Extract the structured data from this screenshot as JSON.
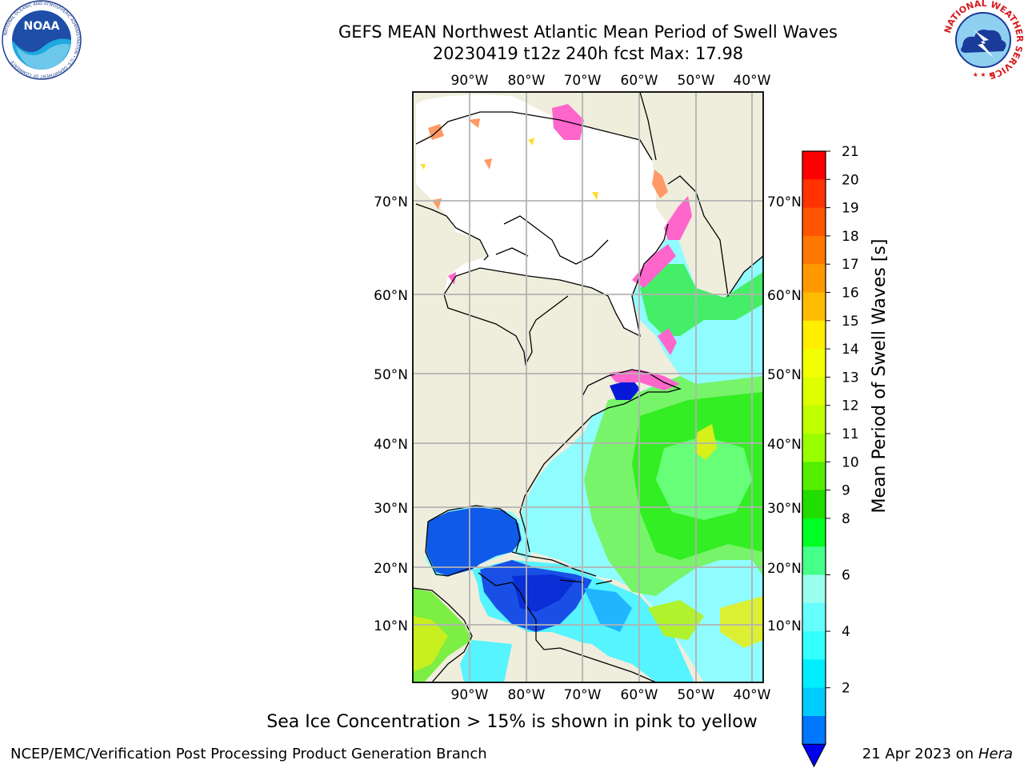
{
  "header": {
    "title_line1": "GEFS MEAN Northwest Atlantic Mean Period of Swell Waves",
    "title_line2": "20230419 t12z 240h fcst   Max: 17.98"
  },
  "logos": {
    "noaa_text": "NOAA",
    "noaa_ring": "NATIONAL OCEANIC AND ATMOSPHERIC ADMINISTRATION • U.S. DEPARTMENT OF COMMERCE",
    "nws_ring": "NATIONAL WEATHER SERVICE"
  },
  "map": {
    "lon_labels": [
      "90°W",
      "80°W",
      "70°W",
      "60°W",
      "50°W",
      "40°W"
    ],
    "lat_labels": [
      "70°N",
      "60°N",
      "50°N",
      "40°N",
      "30°N",
      "20°N",
      "10°N"
    ],
    "colors": {
      "land": "#efeddc",
      "ice_pink": "#ff66cc",
      "ice_orange": "#ff9966",
      "ice_yellow": "#ffdd33",
      "grid": "#b3b3b3"
    }
  },
  "colorbar": {
    "label": "Mean Period of Swell Waves [s]",
    "ticks": [
      "21",
      "20",
      "19",
      "18",
      "17",
      "16",
      "15",
      "14",
      "13",
      "12",
      "11",
      "10",
      "9",
      "8",
      "6",
      "4",
      "2"
    ],
    "colors": [
      "#ff0000",
      "#ff3300",
      "#ff5500",
      "#ff7700",
      "#ff9900",
      "#ffbb00",
      "#ffee00",
      "#f2ff00",
      "#ddff00",
      "#c0ff00",
      "#99ff00",
      "#55ee00",
      "#22dd00",
      "#00ff22",
      "#44ff88",
      "#99ffee",
      "#66ffff",
      "#33ffff",
      "#00eeff",
      "#00ccff",
      "#0077ff"
    ],
    "under_color": "#0000ee"
  },
  "caption": "Sea Ice Concentration > 15% is shown in pink to yellow",
  "footer": {
    "left": "NCEP/EMC/Verification Post Processing Product Generation Branch",
    "right_date": "21 Apr 2023 on",
    "right_host": "Hera"
  }
}
